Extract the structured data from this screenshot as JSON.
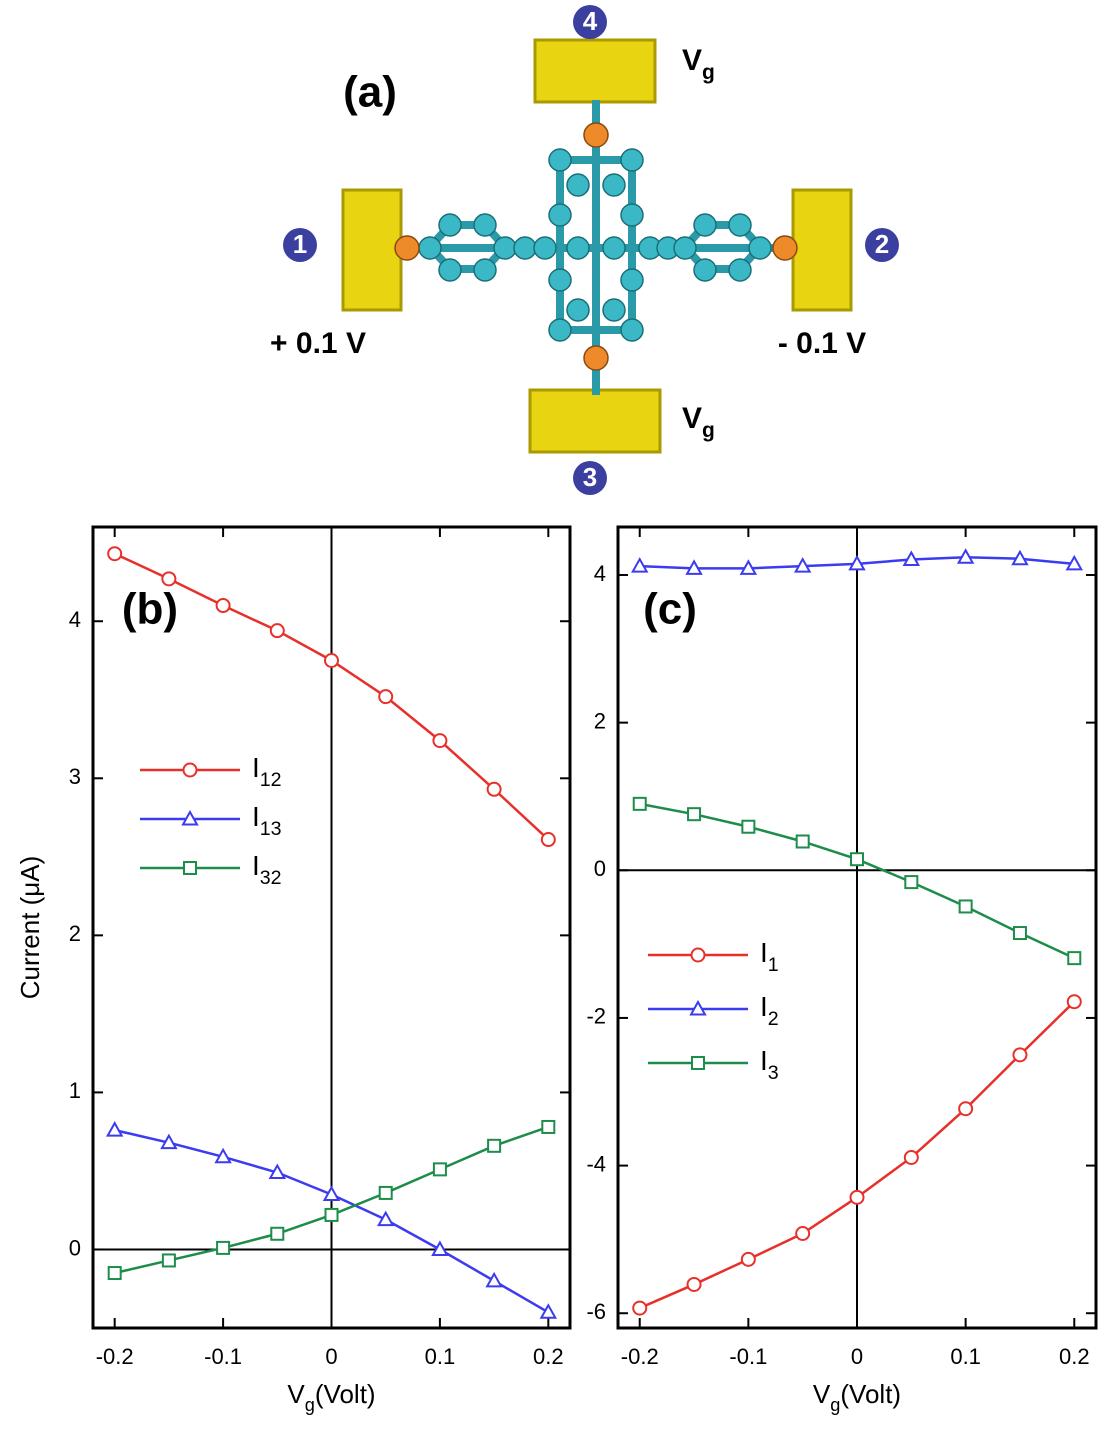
{
  "diagram": {
    "panel_label": "(a)",
    "left_voltage": "+ 0.1 V",
    "right_voltage": "- 0.1 V",
    "gate_top": "Vg",
    "gate_bottom": "Vg",
    "terminals": [
      "1",
      "2",
      "3",
      "4"
    ]
  },
  "chart_data": [
    {
      "type": "line",
      "panel_label": "(b)",
      "x_label": "Vg(Volt)",
      "y_label": "Current (μA)",
      "x": [
        -0.2,
        -0.15,
        -0.1,
        -0.05,
        0,
        0.05,
        0.1,
        0.15,
        0.2
      ],
      "series": [
        {
          "name": "I12",
          "color": "#e8302a",
          "marker": "circle",
          "values": [
            4.43,
            4.27,
            4.1,
            3.94,
            3.75,
            3.52,
            3.24,
            2.93,
            2.61
          ]
        },
        {
          "name": "I13",
          "color": "#3b3bf0",
          "marker": "triangle",
          "values": [
            0.76,
            0.68,
            0.59,
            0.49,
            0.35,
            0.19,
            0.0,
            -0.2,
            -0.4
          ]
        },
        {
          "name": "I32",
          "color": "#1e8c4a",
          "marker": "square",
          "values": [
            -0.15,
            -0.07,
            0.01,
            0.1,
            0.22,
            0.36,
            0.51,
            0.66,
            0.78
          ]
        }
      ],
      "xlim": [
        -0.22,
        0.22
      ],
      "xticks": [
        -0.2,
        -0.1,
        0,
        0.1,
        0.2
      ],
      "ylim": [
        -0.5,
        4.6
      ],
      "yticks": [
        0,
        1,
        2,
        3,
        4
      ],
      "zero_lines": true
    },
    {
      "type": "line",
      "panel_label": "(c)",
      "x_label": "Vg(Volt)",
      "x": [
        -0.2,
        -0.15,
        -0.1,
        -0.05,
        0,
        0.05,
        0.1,
        0.15,
        0.2
      ],
      "series": [
        {
          "name": "I1",
          "color": "#e8302a",
          "marker": "circle",
          "values": [
            -5.93,
            -5.61,
            -5.27,
            -4.92,
            -4.43,
            -3.89,
            -3.23,
            -2.5,
            -1.78
          ]
        },
        {
          "name": "I2",
          "color": "#3b3bf0",
          "marker": "triangle",
          "values": [
            4.12,
            4.09,
            4.09,
            4.12,
            4.15,
            4.21,
            4.24,
            4.22,
            4.15
          ]
        },
        {
          "name": "I3",
          "color": "#1e8c4a",
          "marker": "square",
          "values": [
            0.9,
            0.76,
            0.59,
            0.39,
            0.15,
            -0.16,
            -0.49,
            -0.85,
            -1.19
          ]
        }
      ],
      "xlim": [
        -0.22,
        0.22
      ],
      "xticks": [
        -0.2,
        -0.1,
        0,
        0.1,
        0.2
      ],
      "ylim": [
        -6.2,
        4.65
      ],
      "yticks": [
        -6,
        -4,
        -2,
        0,
        2,
        4
      ],
      "zero_lines": true
    }
  ]
}
